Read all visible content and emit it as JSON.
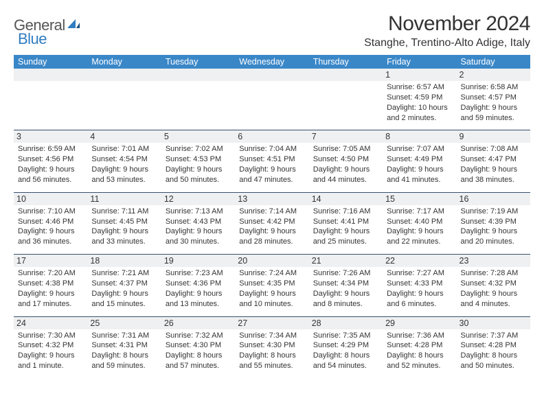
{
  "brand": {
    "name1": "General",
    "name2": "Blue"
  },
  "title": "November 2024",
  "location": "Stanghe, Trentino-Alto Adige, Italy",
  "colors": {
    "header_bg": "#3a87c8",
    "header_fg": "#ffffff",
    "daynum_bg": "#eef0f2",
    "rule": "#35506a",
    "text": "#333333"
  },
  "dow": [
    "Sunday",
    "Monday",
    "Tuesday",
    "Wednesday",
    "Thursday",
    "Friday",
    "Saturday"
  ],
  "weeks": [
    [
      null,
      null,
      null,
      null,
      null,
      {
        "n": "1",
        "sr": "Sunrise: 6:57 AM",
        "ss": "Sunset: 4:59 PM",
        "d1": "Daylight: 10 hours",
        "d2": "and 2 minutes."
      },
      {
        "n": "2",
        "sr": "Sunrise: 6:58 AM",
        "ss": "Sunset: 4:57 PM",
        "d1": "Daylight: 9 hours",
        "d2": "and 59 minutes."
      }
    ],
    [
      {
        "n": "3",
        "sr": "Sunrise: 6:59 AM",
        "ss": "Sunset: 4:56 PM",
        "d1": "Daylight: 9 hours",
        "d2": "and 56 minutes."
      },
      {
        "n": "4",
        "sr": "Sunrise: 7:01 AM",
        "ss": "Sunset: 4:54 PM",
        "d1": "Daylight: 9 hours",
        "d2": "and 53 minutes."
      },
      {
        "n": "5",
        "sr": "Sunrise: 7:02 AM",
        "ss": "Sunset: 4:53 PM",
        "d1": "Daylight: 9 hours",
        "d2": "and 50 minutes."
      },
      {
        "n": "6",
        "sr": "Sunrise: 7:04 AM",
        "ss": "Sunset: 4:51 PM",
        "d1": "Daylight: 9 hours",
        "d2": "and 47 minutes."
      },
      {
        "n": "7",
        "sr": "Sunrise: 7:05 AM",
        "ss": "Sunset: 4:50 PM",
        "d1": "Daylight: 9 hours",
        "d2": "and 44 minutes."
      },
      {
        "n": "8",
        "sr": "Sunrise: 7:07 AM",
        "ss": "Sunset: 4:49 PM",
        "d1": "Daylight: 9 hours",
        "d2": "and 41 minutes."
      },
      {
        "n": "9",
        "sr": "Sunrise: 7:08 AM",
        "ss": "Sunset: 4:47 PM",
        "d1": "Daylight: 9 hours",
        "d2": "and 38 minutes."
      }
    ],
    [
      {
        "n": "10",
        "sr": "Sunrise: 7:10 AM",
        "ss": "Sunset: 4:46 PM",
        "d1": "Daylight: 9 hours",
        "d2": "and 36 minutes."
      },
      {
        "n": "11",
        "sr": "Sunrise: 7:11 AM",
        "ss": "Sunset: 4:45 PM",
        "d1": "Daylight: 9 hours",
        "d2": "and 33 minutes."
      },
      {
        "n": "12",
        "sr": "Sunrise: 7:13 AM",
        "ss": "Sunset: 4:43 PM",
        "d1": "Daylight: 9 hours",
        "d2": "and 30 minutes."
      },
      {
        "n": "13",
        "sr": "Sunrise: 7:14 AM",
        "ss": "Sunset: 4:42 PM",
        "d1": "Daylight: 9 hours",
        "d2": "and 28 minutes."
      },
      {
        "n": "14",
        "sr": "Sunrise: 7:16 AM",
        "ss": "Sunset: 4:41 PM",
        "d1": "Daylight: 9 hours",
        "d2": "and 25 minutes."
      },
      {
        "n": "15",
        "sr": "Sunrise: 7:17 AM",
        "ss": "Sunset: 4:40 PM",
        "d1": "Daylight: 9 hours",
        "d2": "and 22 minutes."
      },
      {
        "n": "16",
        "sr": "Sunrise: 7:19 AM",
        "ss": "Sunset: 4:39 PM",
        "d1": "Daylight: 9 hours",
        "d2": "and 20 minutes."
      }
    ],
    [
      {
        "n": "17",
        "sr": "Sunrise: 7:20 AM",
        "ss": "Sunset: 4:38 PM",
        "d1": "Daylight: 9 hours",
        "d2": "and 17 minutes."
      },
      {
        "n": "18",
        "sr": "Sunrise: 7:21 AM",
        "ss": "Sunset: 4:37 PM",
        "d1": "Daylight: 9 hours",
        "d2": "and 15 minutes."
      },
      {
        "n": "19",
        "sr": "Sunrise: 7:23 AM",
        "ss": "Sunset: 4:36 PM",
        "d1": "Daylight: 9 hours",
        "d2": "and 13 minutes."
      },
      {
        "n": "20",
        "sr": "Sunrise: 7:24 AM",
        "ss": "Sunset: 4:35 PM",
        "d1": "Daylight: 9 hours",
        "d2": "and 10 minutes."
      },
      {
        "n": "21",
        "sr": "Sunrise: 7:26 AM",
        "ss": "Sunset: 4:34 PM",
        "d1": "Daylight: 9 hours",
        "d2": "and 8 minutes."
      },
      {
        "n": "22",
        "sr": "Sunrise: 7:27 AM",
        "ss": "Sunset: 4:33 PM",
        "d1": "Daylight: 9 hours",
        "d2": "and 6 minutes."
      },
      {
        "n": "23",
        "sr": "Sunrise: 7:28 AM",
        "ss": "Sunset: 4:32 PM",
        "d1": "Daylight: 9 hours",
        "d2": "and 4 minutes."
      }
    ],
    [
      {
        "n": "24",
        "sr": "Sunrise: 7:30 AM",
        "ss": "Sunset: 4:32 PM",
        "d1": "Daylight: 9 hours",
        "d2": "and 1 minute."
      },
      {
        "n": "25",
        "sr": "Sunrise: 7:31 AM",
        "ss": "Sunset: 4:31 PM",
        "d1": "Daylight: 8 hours",
        "d2": "and 59 minutes."
      },
      {
        "n": "26",
        "sr": "Sunrise: 7:32 AM",
        "ss": "Sunset: 4:30 PM",
        "d1": "Daylight: 8 hours",
        "d2": "and 57 minutes."
      },
      {
        "n": "27",
        "sr": "Sunrise: 7:34 AM",
        "ss": "Sunset: 4:30 PM",
        "d1": "Daylight: 8 hours",
        "d2": "and 55 minutes."
      },
      {
        "n": "28",
        "sr": "Sunrise: 7:35 AM",
        "ss": "Sunset: 4:29 PM",
        "d1": "Daylight: 8 hours",
        "d2": "and 54 minutes."
      },
      {
        "n": "29",
        "sr": "Sunrise: 7:36 AM",
        "ss": "Sunset: 4:28 PM",
        "d1": "Daylight: 8 hours",
        "d2": "and 52 minutes."
      },
      {
        "n": "30",
        "sr": "Sunrise: 7:37 AM",
        "ss": "Sunset: 4:28 PM",
        "d1": "Daylight: 8 hours",
        "d2": "and 50 minutes."
      }
    ]
  ]
}
